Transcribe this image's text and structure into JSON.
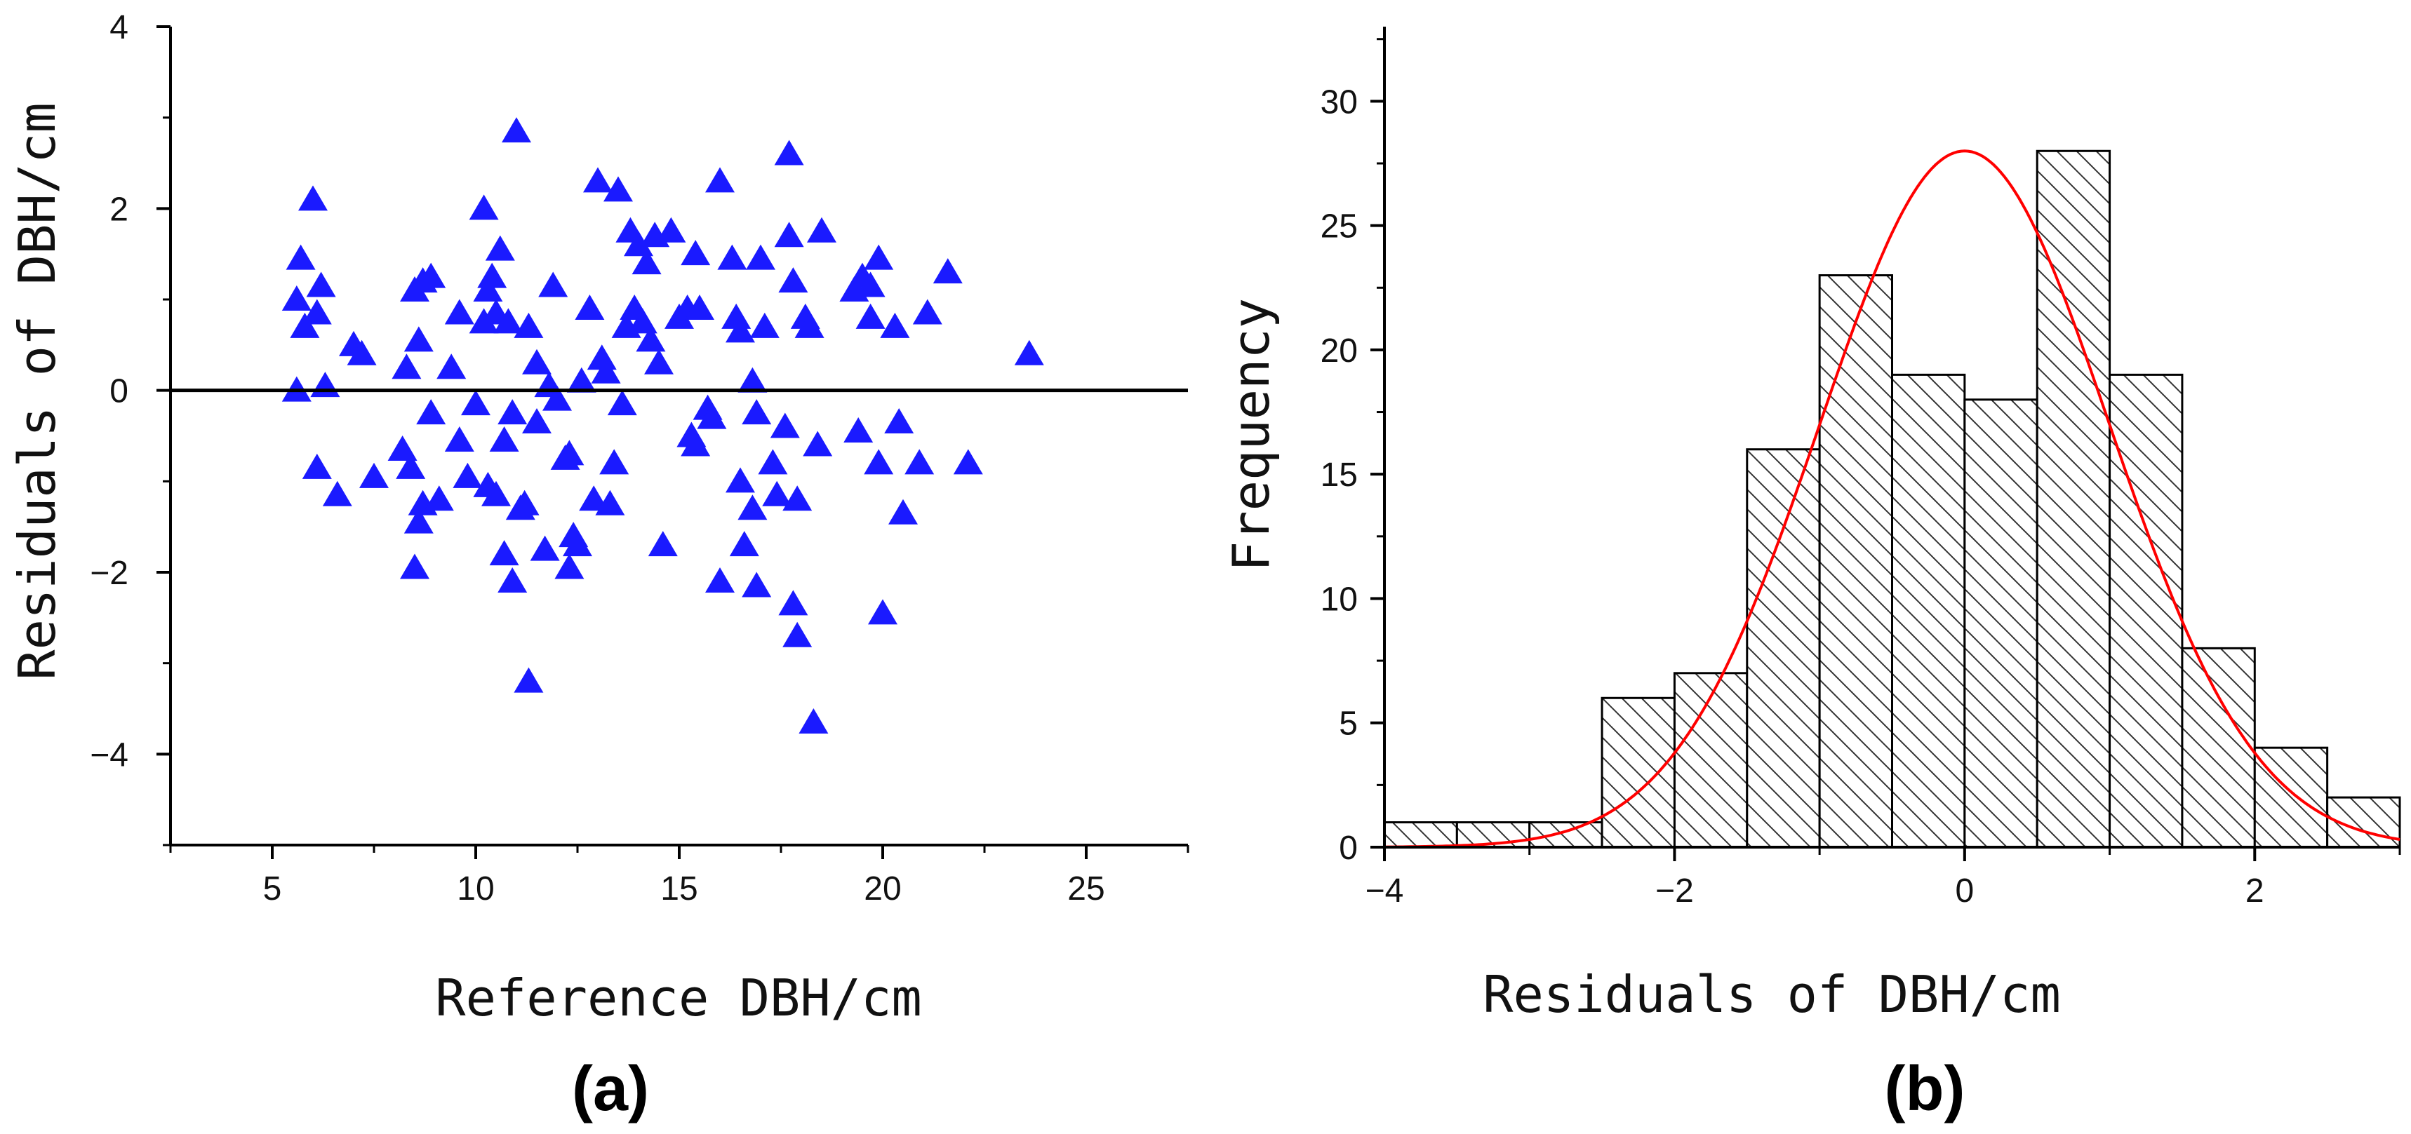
{
  "chart_data": [
    {
      "type": "scatter",
      "panel_label": "(a)",
      "xlabel": "Reference DBH/cm",
      "ylabel": "Residuals of DBH/cm",
      "xlim": [
        2.5,
        27.5
      ],
      "ylim": [
        -5,
        4
      ],
      "x_ticks": [
        5,
        10,
        15,
        20,
        25
      ],
      "x_tick_labels": [
        "5",
        "10",
        "15",
        "20",
        "25"
      ],
      "y_ticks": [
        -4,
        -2,
        0,
        2,
        4
      ],
      "y_tick_labels": [
        "−4",
        "−2",
        "0",
        "2",
        "4"
      ],
      "reference_line_y": 0,
      "marker": "triangle",
      "color": "#1a1aff",
      "points": [
        [
          6.0,
          2.1
        ],
        [
          5.7,
          1.45
        ],
        [
          5.6,
          1.0
        ],
        [
          5.8,
          0.7
        ],
        [
          6.1,
          0.85
        ],
        [
          6.2,
          1.15
        ],
        [
          5.6,
          0.0
        ],
        [
          6.3,
          0.05
        ],
        [
          6.1,
          -0.85
        ],
        [
          6.6,
          -1.15
        ],
        [
          7.0,
          0.5
        ],
        [
          7.2,
          0.4
        ],
        [
          7.5,
          -0.95
        ],
        [
          8.2,
          -0.65
        ],
        [
          8.3,
          0.25
        ],
        [
          8.4,
          -0.85
        ],
        [
          8.5,
          1.1
        ],
        [
          8.6,
          0.55
        ],
        [
          8.7,
          1.2
        ],
        [
          8.9,
          1.25
        ],
        [
          8.6,
          -1.45
        ],
        [
          8.5,
          -1.95
        ],
        [
          8.7,
          -1.25
        ],
        [
          8.9,
          -0.25
        ],
        [
          9.1,
          -1.2
        ],
        [
          9.4,
          0.25
        ],
        [
          9.6,
          0.85
        ],
        [
          9.6,
          -0.55
        ],
        [
          9.8,
          -0.95
        ],
        [
          10.0,
          -0.15
        ],
        [
          10.2,
          2.0
        ],
        [
          10.3,
          1.1
        ],
        [
          10.4,
          1.25
        ],
        [
          10.2,
          0.75
        ],
        [
          10.5,
          0.85
        ],
        [
          10.6,
          1.55
        ],
        [
          10.8,
          0.75
        ],
        [
          10.3,
          -1.05
        ],
        [
          10.5,
          -1.15
        ],
        [
          10.7,
          -0.55
        ],
        [
          10.9,
          -0.25
        ],
        [
          10.7,
          -1.8
        ],
        [
          10.9,
          -2.1
        ],
        [
          11.0,
          2.85
        ],
        [
          11.1,
          -1.3
        ],
        [
          11.2,
          -1.25
        ],
        [
          11.3,
          0.7
        ],
        [
          11.3,
          -3.2
        ],
        [
          11.5,
          0.3
        ],
        [
          11.5,
          -0.35
        ],
        [
          11.7,
          -1.75
        ],
        [
          11.8,
          0.05
        ],
        [
          11.9,
          1.15
        ],
        [
          12.0,
          -0.1
        ],
        [
          12.2,
          -0.75
        ],
        [
          12.3,
          -0.7
        ],
        [
          12.3,
          -1.95
        ],
        [
          12.4,
          -1.6
        ],
        [
          12.5,
          -1.7
        ],
        [
          12.6,
          0.1
        ],
        [
          12.8,
          0.9
        ],
        [
          12.9,
          -1.2
        ],
        [
          13.0,
          2.3
        ],
        [
          13.1,
          0.35
        ],
        [
          13.2,
          0.2
        ],
        [
          13.3,
          -1.25
        ],
        [
          13.4,
          -0.8
        ],
        [
          13.5,
          2.2
        ],
        [
          13.6,
          -0.15
        ],
        [
          13.7,
          0.7
        ],
        [
          13.8,
          1.75
        ],
        [
          13.9,
          0.9
        ],
        [
          14.0,
          1.6
        ],
        [
          14.1,
          0.75
        ],
        [
          14.2,
          1.4
        ],
        [
          14.3,
          0.55
        ],
        [
          14.4,
          1.7
        ],
        [
          14.5,
          0.3
        ],
        [
          14.6,
          -1.7
        ],
        [
          14.8,
          1.75
        ],
        [
          15.0,
          0.8
        ],
        [
          15.2,
          0.9
        ],
        [
          15.3,
          -0.5
        ],
        [
          15.4,
          -0.6
        ],
        [
          15.4,
          1.5
        ],
        [
          15.5,
          0.9
        ],
        [
          15.7,
          -0.2
        ],
        [
          15.8,
          -0.3
        ],
        [
          16.0,
          2.3
        ],
        [
          16.0,
          -2.1
        ],
        [
          16.3,
          1.45
        ],
        [
          16.4,
          0.8
        ],
        [
          16.5,
          0.65
        ],
        [
          16.5,
          -1.0
        ],
        [
          16.6,
          -1.7
        ],
        [
          16.8,
          0.1
        ],
        [
          16.8,
          -1.3
        ],
        [
          16.9,
          -2.15
        ],
        [
          16.9,
          -0.25
        ],
        [
          17.0,
          1.45
        ],
        [
          17.1,
          0.7
        ],
        [
          17.3,
          -0.8
        ],
        [
          17.4,
          -1.15
        ],
        [
          17.6,
          -0.4
        ],
        [
          17.7,
          1.7
        ],
        [
          17.7,
          2.6
        ],
        [
          17.8,
          1.2
        ],
        [
          17.9,
          -1.2
        ],
        [
          17.8,
          -2.35
        ],
        [
          17.9,
          -2.7
        ],
        [
          18.1,
          0.8
        ],
        [
          18.2,
          0.7
        ],
        [
          18.4,
          -0.6
        ],
        [
          18.5,
          1.75
        ],
        [
          18.3,
          -3.65
        ],
        [
          19.3,
          1.1
        ],
        [
          19.5,
          1.25
        ],
        [
          19.7,
          1.15
        ],
        [
          19.7,
          0.8
        ],
        [
          19.9,
          1.45
        ],
        [
          19.4,
          -0.45
        ],
        [
          19.9,
          -0.8
        ],
        [
          20.0,
          -2.45
        ],
        [
          20.3,
          0.7
        ],
        [
          20.4,
          -0.35
        ],
        [
          20.5,
          -1.35
        ],
        [
          20.9,
          -0.8
        ],
        [
          21.1,
          0.85
        ],
        [
          21.6,
          1.3
        ],
        [
          22.1,
          -0.8
        ],
        [
          23.6,
          0.4
        ]
      ]
    },
    {
      "type": "bar",
      "subtype": "histogram",
      "panel_label": "(b)",
      "xlabel": "Residuals of DBH/cm",
      "ylabel": "Frequency",
      "xlim": [
        -4,
        3
      ],
      "ylim": [
        0,
        33
      ],
      "x_ticks": [
        -4,
        -2,
        0,
        2
      ],
      "x_tick_labels": [
        "−4",
        "−2",
        "0",
        "2"
      ],
      "y_ticks": [
        0,
        5,
        10,
        15,
        20,
        25,
        30
      ],
      "y_tick_labels": [
        "0",
        "5",
        "10",
        "15",
        "20",
        "25",
        "30"
      ],
      "bin_width": 0.5,
      "bin_edges": [
        -4,
        -3.5,
        -3,
        -2.5,
        -2,
        -1.5,
        -1,
        -0.5,
        0,
        0.5,
        1,
        1.5,
        2,
        2.5,
        3
      ],
      "values": [
        1,
        1,
        1,
        6,
        7,
        16,
        23,
        19,
        18,
        28,
        19,
        8,
        4,
        2
      ],
      "bar_fill": "hatched",
      "fit_curve": {
        "type": "normal",
        "mean": 0,
        "sd": 1.0,
        "peak": 28,
        "color": "#ff0000"
      }
    }
  ]
}
